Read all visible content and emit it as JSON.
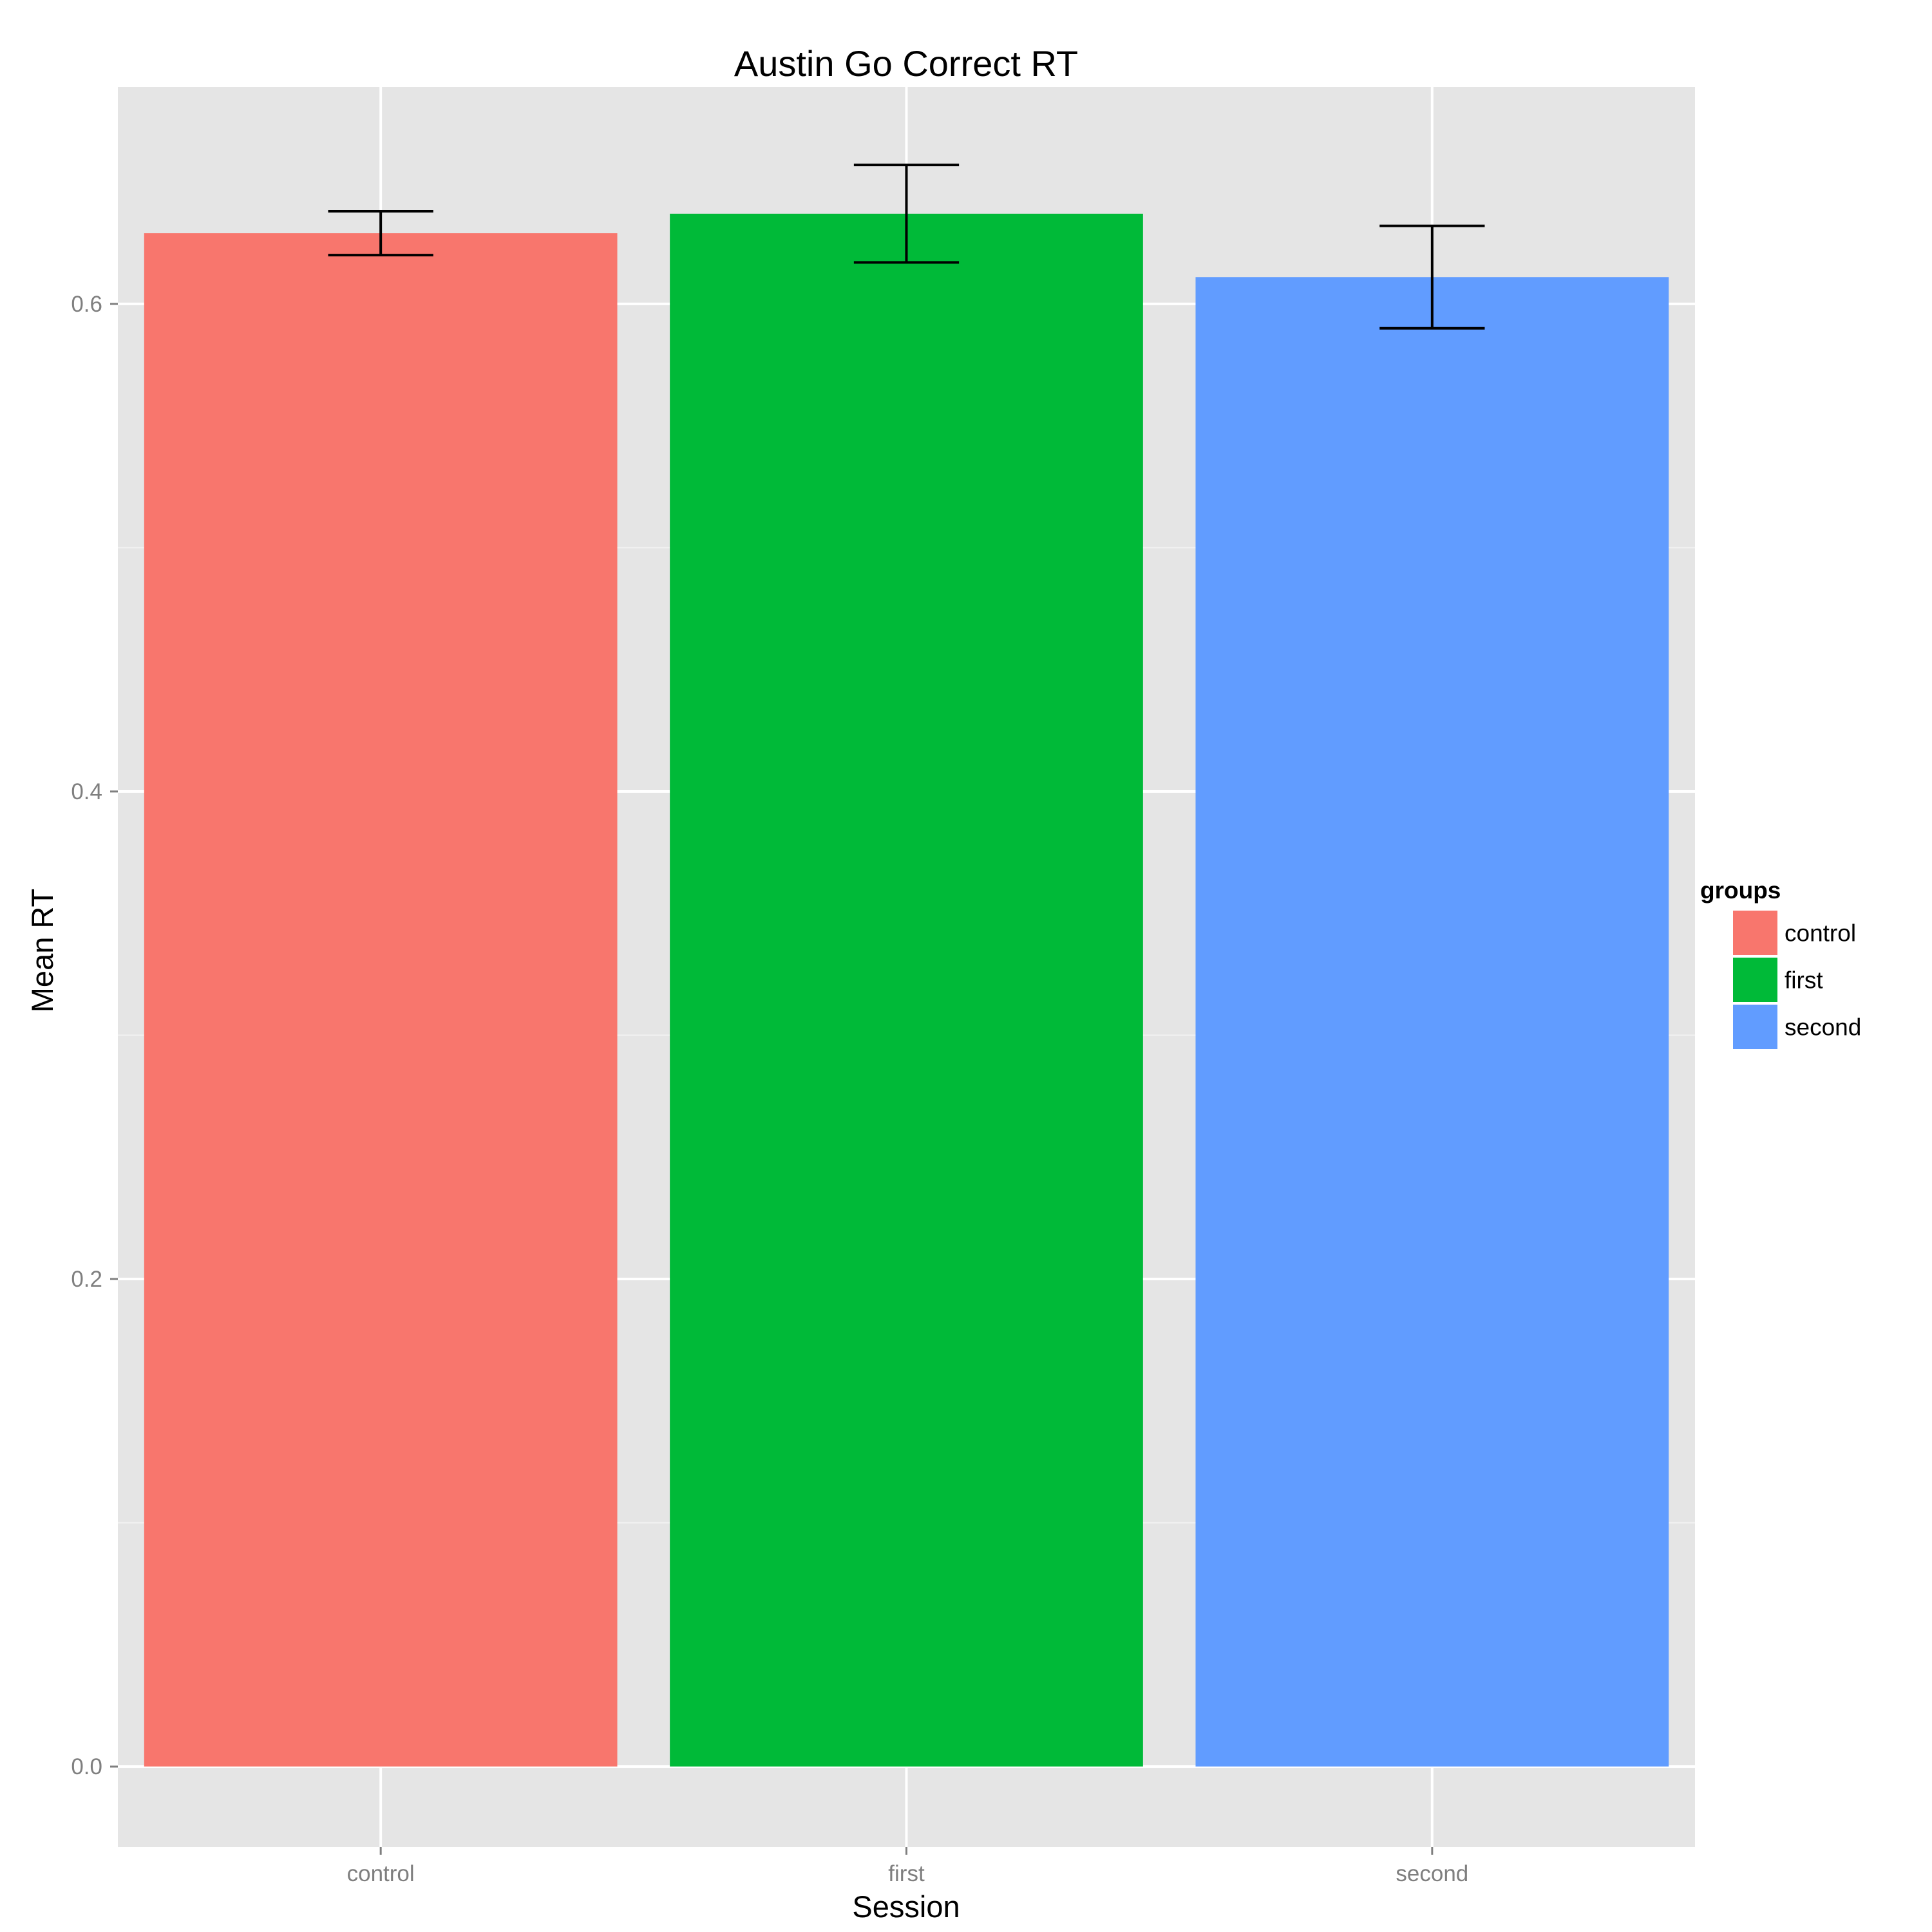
{
  "chart_data": {
    "type": "bar",
    "title": "Austin Go Correct RT",
    "xlabel": "Session",
    "ylabel": "Mean RT",
    "categories": [
      "control",
      "first",
      "second"
    ],
    "values": [
      0.629,
      0.637,
      0.611
    ],
    "error_bars": [
      {
        "lower": 0.62,
        "upper": 0.638
      },
      {
        "lower": 0.617,
        "upper": 0.657
      },
      {
        "lower": 0.59,
        "upper": 0.632
      }
    ],
    "colors": [
      "#F8766D",
      "#00BA38",
      "#619CFF"
    ],
    "ylim": [
      -0.033,
      0.689
    ],
    "yticks": [
      0.0,
      0.2,
      0.4,
      0.6
    ],
    "ytick_labels": [
      "0.0",
      "0.2",
      "0.4",
      "0.6"
    ],
    "grid": true,
    "legend": {
      "title": "groups",
      "position": "right",
      "entries": [
        "control",
        "first",
        "second"
      ]
    }
  }
}
